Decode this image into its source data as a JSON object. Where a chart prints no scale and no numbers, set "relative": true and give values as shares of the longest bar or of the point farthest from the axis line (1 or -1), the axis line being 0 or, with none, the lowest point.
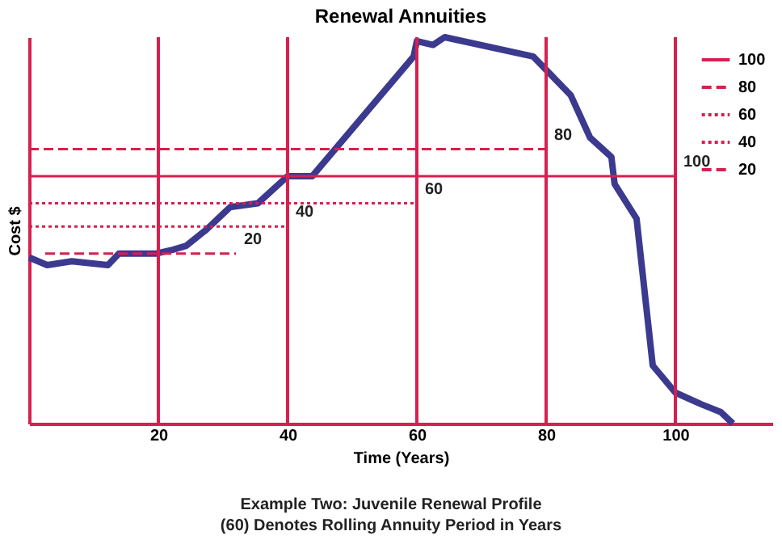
{
  "chart_data": {
    "type": "line",
    "title": "Renewal Annuities",
    "xlabel": "Time (Years)",
    "ylabel": "Cost $",
    "annotations": [
      "Example Two: Juvenile Renewal Profile",
      "(60) Denotes Rolling Annuity Period in Years"
    ],
    "relative": true,
    "xlim": [
      0,
      115
    ],
    "xticks": [
      20,
      40,
      60,
      80,
      100
    ],
    "ref_lines": [
      {
        "axis": "x",
        "value": 20,
        "color": "#d6204f"
      },
      {
        "axis": "x",
        "value": 40,
        "color": "#d6204f"
      },
      {
        "axis": "x",
        "value": 60,
        "color": "#d6204f"
      },
      {
        "axis": "x",
        "value": 80,
        "color": "#d6204f"
      },
      {
        "axis": "x",
        "value": 100,
        "color": "#d6204f"
      }
    ],
    "legend": "top right",
    "marker": "none",
    "series": [
      {
        "color": "#3b3a8f",
        "line_style": "solid",
        "x": [
          0,
          2.8,
          6.6,
          12.2,
          13.9,
          19.7,
          22.3,
          24.3,
          27.3,
          31.1,
          35.4,
          40,
          43.8,
          59.5,
          60,
          62.5,
          64.3,
          78,
          83.8,
          86.8,
          90.1,
          90.6,
          94,
          96.5,
          100,
          104,
          107,
          108.9
        ],
        "values": [
          0.43,
          0.41,
          0.42,
          0.41,
          0.44,
          0.44,
          0.45,
          0.46,
          0.5,
          0.56,
          0.57,
          0.64,
          0.64,
          0.95,
          0.99,
          0.98,
          1,
          0.95,
          0.85,
          0.74,
          0.69,
          0.62,
          0.53,
          0.15,
          0.08,
          0.05,
          0.03,
          0
        ]
      },
      {
        "name": "100",
        "color": "#d6204f",
        "line_style": "solid",
        "x": [
          0,
          100
        ],
        "values": [
          0.64,
          0.64
        ]
      },
      {
        "name": "80",
        "color": "#d6204f",
        "line_style": "dashed",
        "x": [
          0,
          80
        ],
        "values": [
          0.71,
          0.71
        ]
      },
      {
        "name": "60",
        "color": "#d6204f",
        "line_style": "dotted",
        "x": [
          0,
          60
        ],
        "values": [
          0.57,
          0.57
        ]
      },
      {
        "name": "40",
        "color": "#d6204f",
        "line_style": "dotted",
        "x": [
          0,
          40
        ],
        "values": [
          0.51,
          0.51
        ]
      },
      {
        "name": "20",
        "color": "#d6204f",
        "line_style": "dashed",
        "x": [
          2.5,
          32
        ],
        "values": [
          0.44,
          0.44
        ]
      }
    ]
  }
}
